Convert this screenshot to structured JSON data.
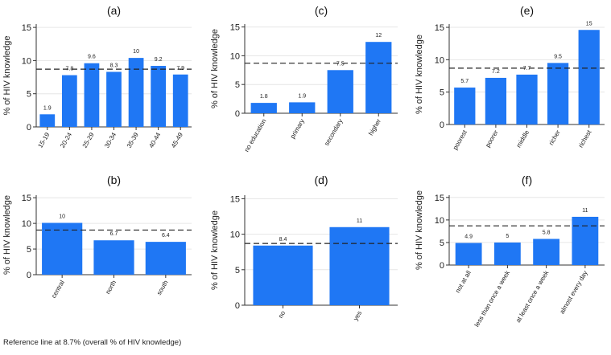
{
  "figure": {
    "footnote": "Reference line at 8.7% (overall % of HIV knowledge)",
    "reference_line": 8.7,
    "bar_color": "#1f77f4",
    "axis_color": "#333333",
    "grid_color": "#e6e6e6"
  },
  "chart_data": [
    {
      "id": "a",
      "type": "bar",
      "title": "(a)",
      "xlabel": "",
      "ylabel": "% of HIV knowledge",
      "ylim": [
        0,
        15
      ],
      "yticks": [
        0,
        5,
        10,
        15
      ],
      "rotate_labels": true,
      "categories": [
        "15-19",
        "20-24",
        "25-29",
        "30-34",
        "35-39",
        "40-44",
        "45-49"
      ],
      "values": [
        1.9,
        7.8,
        9.6,
        8.3,
        10.4,
        9.2,
        7.9
      ],
      "labels": [
        "1.9",
        "7.8",
        "9.6",
        "8.3",
        "10",
        "9.2",
        "7.9"
      ]
    },
    {
      "id": "b",
      "type": "bar",
      "title": "(b)",
      "xlabel": "",
      "ylabel": "% of HIV knowledge",
      "ylim": [
        0,
        15
      ],
      "yticks": [
        0,
        5,
        10,
        15
      ],
      "rotate_labels": true,
      "categories": [
        "central",
        "north",
        "south"
      ],
      "values": [
        10.1,
        6.7,
        6.4
      ],
      "labels": [
        "10",
        "6.7",
        "6.4"
      ]
    },
    {
      "id": "c",
      "type": "bar",
      "title": "(c)",
      "xlabel": "",
      "ylabel": "% of HIV knowledge",
      "ylim": [
        0,
        15
      ],
      "yticks": [
        0,
        5,
        10,
        15
      ],
      "rotate_labels": true,
      "categories": [
        "no education",
        "primary",
        "secondary",
        "higher"
      ],
      "values": [
        1.8,
        1.9,
        7.5,
        12.4
      ],
      "labels": [
        "1.8",
        "1.9",
        "7.5",
        "12"
      ]
    },
    {
      "id": "d",
      "type": "bar",
      "title": "(d)",
      "xlabel": "",
      "ylabel": "% of HIV knowledge",
      "ylim": [
        0,
        15
      ],
      "yticks": [
        0,
        5,
        10,
        15
      ],
      "rotate_labels": true,
      "categories": [
        "no",
        "yes"
      ],
      "values": [
        8.4,
        11.0
      ],
      "labels": [
        "8.4",
        "11"
      ]
    },
    {
      "id": "e",
      "type": "bar",
      "title": "(e)",
      "xlabel": "",
      "ylabel": "% of HIV knowledge",
      "ylim": [
        0,
        15
      ],
      "yticks": [
        0,
        5,
        10,
        15
      ],
      "rotate_labels": true,
      "categories": [
        "poorest",
        "poorer",
        "middle",
        "richer",
        "richest"
      ],
      "values": [
        5.7,
        7.2,
        7.7,
        9.5,
        14.6
      ],
      "labels": [
        "5.7",
        "7.2",
        "7.7",
        "9.5",
        "15"
      ]
    },
    {
      "id": "f",
      "type": "bar",
      "title": "(f)",
      "xlabel": "",
      "ylabel": "% of HIV knowledge",
      "ylim": [
        0,
        15
      ],
      "yticks": [
        0,
        5,
        10,
        15
      ],
      "rotate_labels": true,
      "categories": [
        "not at all",
        "less than once a week",
        "at least once a week",
        "almost every day"
      ],
      "values": [
        4.9,
        5.0,
        5.8,
        10.7
      ],
      "labels": [
        "4.9",
        "5",
        "5.8",
        "11"
      ]
    }
  ]
}
